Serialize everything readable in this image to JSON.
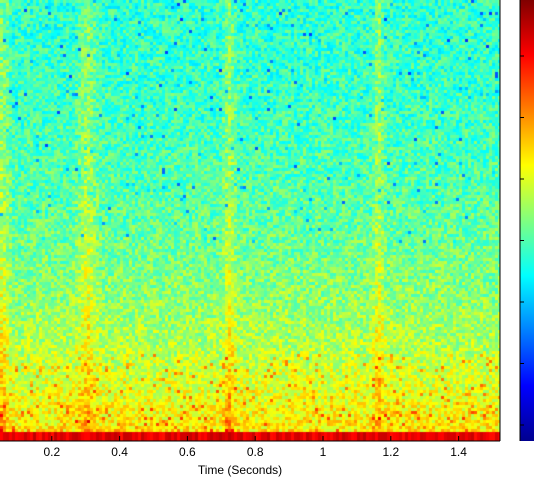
{
  "chart_data": {
    "type": "heatmap",
    "title": "",
    "xlabel": "Time (Seconds)",
    "ylabel": "",
    "xlim": [
      0.0,
      1.5
    ],
    "x_ticks": [
      {
        "value": 0.2,
        "label": "0.2"
      },
      {
        "value": 0.4,
        "label": "0.4"
      },
      {
        "value": 0.6,
        "label": "0.6"
      },
      {
        "value": 0.8,
        "label": "0.8"
      },
      {
        "value": 1.0,
        "label": "1"
      },
      {
        "value": 1.2,
        "label": "1.2"
      },
      {
        "value": 1.4,
        "label": "1.4"
      }
    ],
    "colormap": "jet",
    "colorbar": {
      "visible": true,
      "tick_count": 7
    },
    "bright_vertical_bands_at_seconds": [
      0.05,
      0.3,
      0.72,
      1.16
    ],
    "low_frequency_strip": "dark red"
  }
}
